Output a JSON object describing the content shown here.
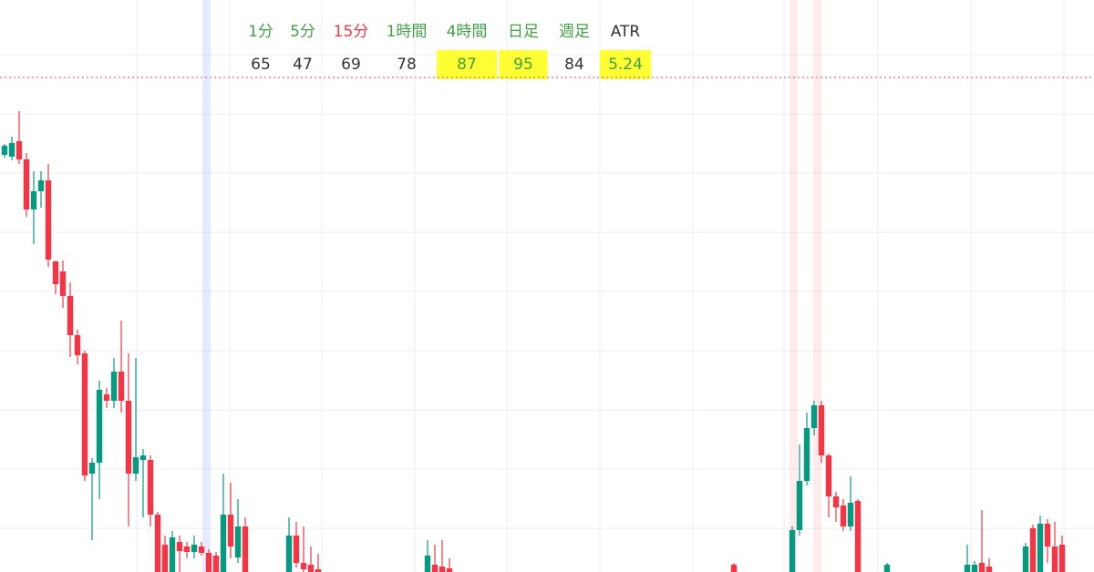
{
  "chart_data": {
    "type": "candlestick",
    "up_color": "#089981",
    "down_color": "#f23645",
    "xlim": [
      -0.625,
      149.375
    ],
    "ylim": [
      0,
      628
    ],
    "price_line": 543,
    "price_line_color": "#e0454f",
    "x": [
      0,
      1,
      2,
      3,
      4,
      5,
      6,
      7,
      8,
      9,
      10,
      11,
      12,
      13,
      14,
      15,
      16,
      17,
      18,
      19,
      20,
      21,
      22,
      23,
      24,
      25,
      26,
      27,
      28,
      29,
      30,
      31,
      32,
      33,
      39,
      40,
      41,
      42,
      43,
      58,
      59,
      60,
      61,
      100,
      108,
      109,
      110,
      111,
      112,
      113,
      114,
      115,
      116,
      117,
      121,
      132,
      133,
      134,
      135,
      140,
      141,
      142,
      143,
      144,
      145
    ],
    "open": [
      458,
      456,
      473,
      453,
      398,
      418,
      430,
      341,
      330,
      303,
      260,
      240,
      108,
      120,
      195,
      188,
      220,
      188,
      108,
      123,
      123,
      63,
      30,
      0,
      33,
      28,
      22,
      28,
      21,
      18,
      0,
      63,
      16,
      50,
      0,
      40,
      10,
      8,
      3,
      0,
      8,
      6,
      4,
      8,
      0,
      46,
      100,
      158,
      183,
      128,
      83,
      73,
      50,
      78,
      0,
      0,
      0,
      10,
      6,
      0,
      48,
      0,
      53,
      28,
      30
    ],
    "high": [
      470,
      478,
      506,
      460,
      440,
      440,
      448,
      342,
      342,
      318,
      266,
      243,
      125,
      210,
      202,
      235,
      276,
      240,
      235,
      135,
      128,
      66,
      40,
      45,
      40,
      33,
      40,
      33,
      25,
      22,
      108,
      98,
      80,
      60,
      60,
      55,
      50,
      28,
      20,
      35,
      30,
      35,
      15,
      10,
      50,
      140,
      175,
      188,
      188,
      130,
      88,
      80,
      105,
      80,
      10,
      30,
      12,
      68,
      15,
      32,
      52,
      62,
      58,
      55,
      40
    ],
    "low": [
      455,
      452,
      448,
      390,
      360,
      400,
      335,
      305,
      290,
      236,
      228,
      100,
      35,
      80,
      180,
      180,
      175,
      50,
      100,
      60,
      50,
      0,
      0,
      0,
      0,
      15,
      15,
      18,
      0,
      0,
      0,
      15,
      10,
      0,
      0,
      5,
      0,
      0,
      0,
      0,
      0,
      0,
      0,
      0,
      0,
      40,
      95,
      150,
      120,
      60,
      55,
      45,
      45,
      0,
      0,
      0,
      0,
      0,
      0,
      0,
      0,
      0,
      10,
      0,
      0
    ],
    "close": [
      468,
      471,
      453,
      398,
      418,
      430,
      343,
      316,
      303,
      260,
      238,
      106,
      120,
      200,
      188,
      220,
      188,
      108,
      126,
      128,
      63,
      0,
      0,
      38,
      23,
      22,
      30,
      21,
      0,
      0,
      63,
      28,
      50,
      0,
      40,
      10,
      3,
      0,
      0,
      18,
      0,
      0,
      0,
      0,
      46,
      100,
      158,
      183,
      128,
      83,
      71,
      50,
      76,
      0,
      8,
      8,
      8,
      0,
      0,
      28,
      0,
      53,
      28,
      0,
      0
    ]
  },
  "indicators": [
    {
      "label": "1分",
      "value": "65",
      "label_color": "#43a047",
      "highlight": false
    },
    {
      "label": "5分",
      "value": "47",
      "label_color": "#43a047",
      "highlight": false
    },
    {
      "label": "15分",
      "value": "69",
      "label_color": "#f23645",
      "highlight": false
    },
    {
      "label": "1時間",
      "value": "78",
      "label_color": "#43a047",
      "highlight": false
    },
    {
      "label": "4時間",
      "value": "87",
      "label_color": "#43a047",
      "highlight": true
    },
    {
      "label": "日足",
      "value": "95",
      "label_color": "#43a047",
      "highlight": true
    },
    {
      "label": "週足",
      "value": "84",
      "label_color": "#43a047",
      "highlight": false
    },
    {
      "label": "ATR",
      "value": "5.24",
      "label_color": "#333333",
      "highlight": true
    }
  ]
}
